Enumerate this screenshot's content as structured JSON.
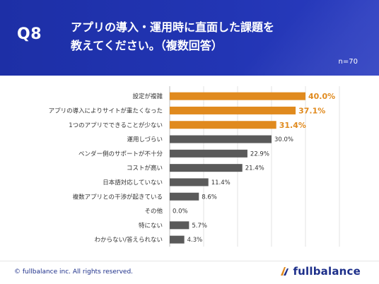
{
  "header": {
    "question_number": "Q8",
    "title_line1": "アプリの導入・運用時に直面した課題を",
    "title_line2": "教えてください。（複数回答）",
    "sample_size": "n=70"
  },
  "footer": {
    "copyright": "© fullbalance inc. All rights reserved.",
    "brand": "fullbalance"
  },
  "colors": {
    "header_bg": "#2235b4",
    "highlight_bar": "#e08a1e",
    "normal_bar": "#5a5a5a"
  },
  "chart_data": {
    "type": "bar",
    "orientation": "horizontal",
    "categories": [
      "設定が複雑",
      "アプリの導入によりサイトが重たくなった",
      "1つのアプリでできることが少ない",
      "運用しづらい",
      "ベンダー側のサポートが不十分",
      "コストが高い",
      "日本語対応していない",
      "複数アプリとの干渉が起きている",
      "その他",
      "特にない",
      "わからない/答えられない"
    ],
    "values": [
      40.0,
      37.1,
      31.4,
      30.0,
      22.9,
      21.4,
      11.4,
      8.6,
      0.0,
      5.7,
      4.3
    ],
    "value_labels": [
      "40.0%",
      "37.1%",
      "31.4%",
      "30.0%",
      "22.9%",
      "21.4%",
      "11.4%",
      "8.6%",
      "0.0%",
      "5.7%",
      "4.3%"
    ],
    "highlighted": [
      true,
      true,
      true,
      false,
      false,
      false,
      false,
      false,
      false,
      false,
      false
    ],
    "xlim": [
      0,
      50
    ],
    "grid": true
  }
}
